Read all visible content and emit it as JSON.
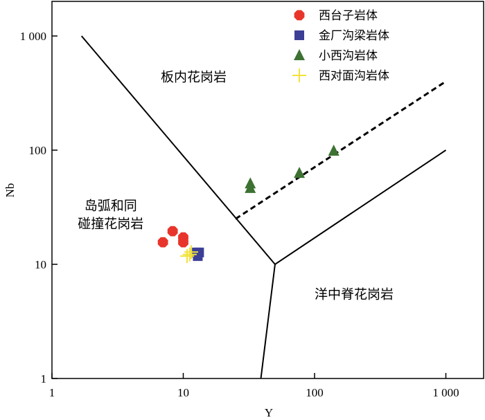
{
  "chart_data": {
    "type": "scatter",
    "title": "",
    "xlabel": "Y",
    "ylabel": "Nb",
    "xscale": "log",
    "yscale": "log",
    "xlim": [
      1,
      1300
    ],
    "ylim": [
      1,
      1500
    ],
    "xticks": [
      {
        "v": 1,
        "label": "1"
      },
      {
        "v": 10,
        "label": "10"
      },
      {
        "v": 100,
        "label": "100"
      },
      {
        "v": 1000,
        "label": "1 000"
      }
    ],
    "yticks": [
      {
        "v": 1,
        "label": "1"
      },
      {
        "v": 10,
        "label": "10"
      },
      {
        "v": 100,
        "label": "100"
      },
      {
        "v": 1000,
        "label": "1 000"
      }
    ],
    "legend_position": "top-right",
    "series": [
      {
        "name": "西台子岩体",
        "marker": "octagon",
        "color": "#e8352b",
        "points": [
          [
            7.0,
            15.6
          ],
          [
            8.3,
            19.5
          ],
          [
            10,
            17.2
          ],
          [
            10,
            15.6
          ]
        ]
      },
      {
        "name": "金厂沟梁岩体",
        "marker": "square",
        "color": "#3c3f96",
        "points": [
          [
            12.7,
            12.7
          ],
          [
            13.2,
            12.7
          ],
          [
            12.9,
            11.8
          ]
        ]
      },
      {
        "name": "小西沟岩体",
        "marker": "triangle",
        "color": "#3d7232",
        "points": [
          [
            32.4,
            51
          ],
          [
            32.4,
            46.5
          ],
          [
            76.6,
            63
          ],
          [
            140,
            98.6
          ]
        ]
      },
      {
        "name": "西对面沟岩体",
        "marker": "cross",
        "color": "#f2e23a",
        "points": [
          [
            11.2,
            12.2
          ],
          [
            10.7,
            11.8
          ],
          [
            11.5,
            12.8
          ]
        ]
      }
    ],
    "boundaries": [
      {
        "style": "solid",
        "points": [
          [
            1.68,
            1000
          ],
          [
            50,
            10
          ]
        ]
      },
      {
        "style": "solid",
        "points": [
          [
            50,
            10
          ],
          [
            1000,
            100
          ]
        ]
      },
      {
        "style": "solid",
        "points": [
          [
            50,
            10
          ],
          [
            39,
            1
          ]
        ]
      },
      {
        "style": "dashed",
        "points": [
          [
            25,
            25
          ],
          [
            1000,
            400
          ]
        ]
      }
    ],
    "regions": [
      {
        "label_lines": [
          "板内花岗岩"
        ],
        "at": [
          12,
          400
        ]
      },
      {
        "label_lines": [
          "岛弧和同",
          "碰撞花岗岩"
        ],
        "at": [
          2.8,
          30
        ]
      },
      {
        "label_lines": [
          "洋中脊花岗岩"
        ],
        "at": [
          200,
          5
        ]
      }
    ]
  }
}
